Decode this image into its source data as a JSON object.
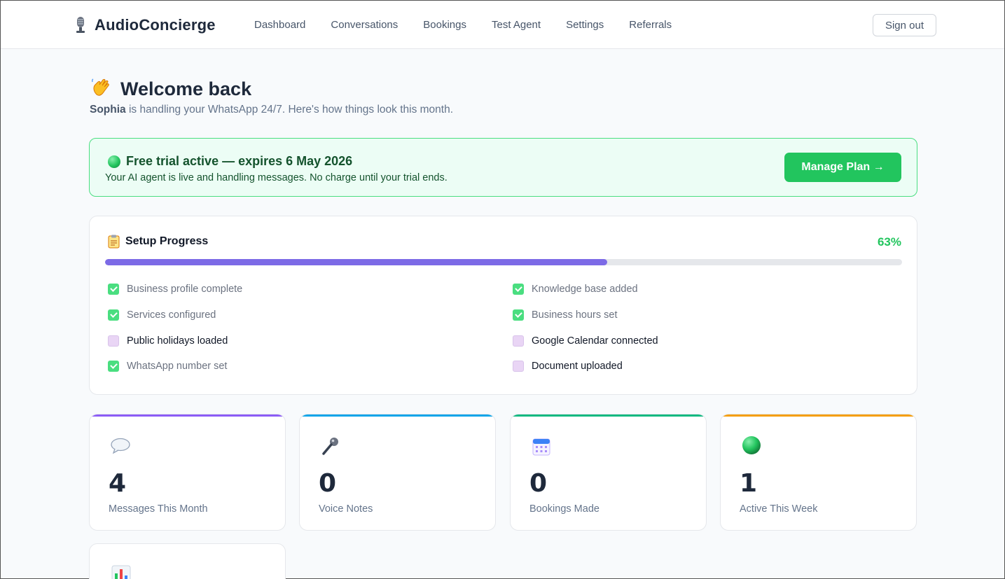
{
  "header": {
    "brand": "AudioConcierge",
    "nav": [
      "Dashboard",
      "Conversations",
      "Bookings",
      "Test Agent",
      "Settings",
      "Referrals"
    ],
    "signout_label": "Sign out"
  },
  "welcome": {
    "title": "Welcome back",
    "agent_name": "Sophia",
    "subtitle_rest": " is handling your WhatsApp 24/7. Here's how things look this month."
  },
  "trial": {
    "title": "Free trial active — expires 6 May 2026",
    "subtitle": "Your AI agent is live and handling messages. No charge until your trial ends.",
    "button_label": "Manage Plan →"
  },
  "setup": {
    "title": "Setup Progress",
    "percent_label": "63%",
    "progress": 0.63,
    "items": [
      {
        "label": "Business profile complete",
        "done": true
      },
      {
        "label": "Knowledge base added",
        "done": true
      },
      {
        "label": "Services configured",
        "done": true
      },
      {
        "label": "Business hours set",
        "done": true
      },
      {
        "label": "Public holidays loaded",
        "done": false
      },
      {
        "label": "Google Calendar connected",
        "done": false
      },
      {
        "label": "WhatsApp number set",
        "done": true
      },
      {
        "label": "Document uploaded",
        "done": false
      }
    ]
  },
  "stats": [
    {
      "value": "4",
      "label": "Messages This Month",
      "icon": "speech-bubble-icon",
      "color": "#8b5cf6"
    },
    {
      "value": "0",
      "label": "Voice Notes",
      "icon": "microphone-icon",
      "color": "#0ea5e9"
    },
    {
      "value": "0",
      "label": "Bookings Made",
      "icon": "calendar-icon",
      "color": "#10b981"
    },
    {
      "value": "1",
      "label": "Active This Week",
      "icon": "green-dot-icon",
      "color": "#f59e0b"
    }
  ],
  "colors": {
    "accent": "#22c55e",
    "progress": "#7c6ae6",
    "trial_bg": "#ecfdf5"
  }
}
